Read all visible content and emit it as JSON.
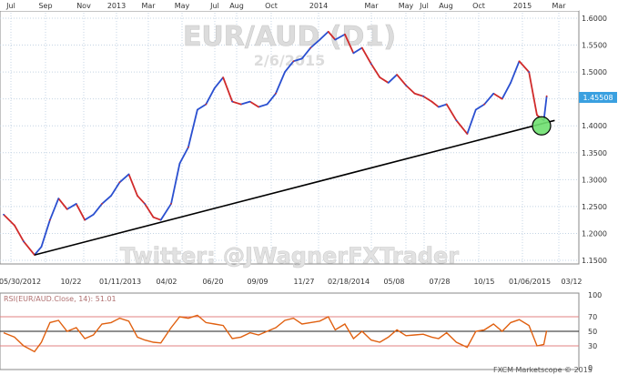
{
  "chart_data": {
    "type": "line",
    "title": "EUR/AUD (D1)",
    "subtitle": "2/6/2015",
    "watermark": "Twitter: @JWagnerFXTrader",
    "footer": "FXCM Marketscope © 2015",
    "last_price": "1.45508",
    "top_axis": [
      "Jul",
      "Sep",
      "Nov",
      "2013",
      "Mar",
      "May",
      "Jul",
      "Aug",
      "Oct",
      "2014",
      "Mar",
      "May",
      "Jul",
      "Aug",
      "Oct",
      "2015",
      "Mar"
    ],
    "bottom_axis": [
      "05/30/2012",
      "10/22",
      "01/11/2013",
      "04/02",
      "06/20",
      "09/09",
      "11/27",
      "02/18/2014",
      "05/08",
      "07/28",
      "10/15",
      "01/06/2015",
      "03/12"
    ],
    "y_ticks": [
      "1.6000",
      "1.5500",
      "1.5000",
      "1.4500",
      "1.4000",
      "1.3500",
      "1.3000",
      "1.2500",
      "1.2000",
      "1.1500"
    ],
    "ylim": [
      1.15,
      1.6
    ],
    "series": [
      {
        "x": [
          "2012-07-01",
          "2012-07-20",
          "2012-08-05",
          "2012-08-24",
          "2012-09-05",
          "2012-09-20",
          "2012-10-05",
          "2012-10-20",
          "2012-11-05",
          "2012-11-20",
          "2012-12-05",
          "2012-12-20",
          "2013-01-05",
          "2013-01-20",
          "2013-02-05",
          "2013-02-20",
          "2013-03-05",
          "2013-03-20",
          "2013-04-02",
          "2013-04-20",
          "2013-05-05",
          "2013-05-20",
          "2013-06-05",
          "2013-06-20",
          "2013-07-05",
          "2013-07-20",
          "2013-08-05",
          "2013-08-20",
          "2013-09-05",
          "2013-09-20",
          "2013-10-05",
          "2013-10-20",
          "2013-11-05",
          "2013-11-20",
          "2013-12-05",
          "2013-12-20",
          "2014-01-05",
          "2014-01-20",
          "2014-02-01",
          "2014-02-18",
          "2014-03-05",
          "2014-03-20",
          "2014-04-05",
          "2014-04-20",
          "2014-05-05",
          "2014-05-20",
          "2014-06-05",
          "2014-06-20",
          "2014-07-05",
          "2014-07-20",
          "2014-08-01",
          "2014-08-15",
          "2014-09-01",
          "2014-09-20",
          "2014-10-05",
          "2014-10-20",
          "2014-11-05",
          "2014-11-20",
          "2014-12-05",
          "2014-12-20",
          "2015-01-06",
          "2015-01-20",
          "2015-02-01",
          "2015-02-06"
        ],
        "values": [
          1.235,
          1.215,
          1.185,
          1.16,
          1.175,
          1.225,
          1.265,
          1.245,
          1.255,
          1.225,
          1.235,
          1.255,
          1.27,
          1.295,
          1.31,
          1.27,
          1.255,
          1.23,
          1.225,
          1.255,
          1.33,
          1.36,
          1.43,
          1.44,
          1.47,
          1.49,
          1.445,
          1.44,
          1.445,
          1.435,
          1.44,
          1.46,
          1.5,
          1.52,
          1.525,
          1.545,
          1.56,
          1.575,
          1.56,
          1.57,
          1.535,
          1.545,
          1.515,
          1.49,
          1.48,
          1.495,
          1.475,
          1.46,
          1.455,
          1.445,
          1.435,
          1.44,
          1.41,
          1.385,
          1.43,
          1.44,
          1.46,
          1.45,
          1.48,
          1.52,
          1.5,
          1.42,
          1.41,
          1.455
        ]
      }
    ],
    "trendline": {
      "from": {
        "x": "2012-08-24",
        "y": 1.16
      },
      "to": {
        "x": "2015-02-20",
        "y": 1.41
      }
    },
    "marked_point": {
      "x": "2015-01-28",
      "y": 1.4
    },
    "rsi": {
      "label": "RSI(EUR/AUD.Close, 14): 51.01",
      "ticks": [
        "100",
        "70",
        "50",
        "30",
        "0"
      ],
      "levels": [
        70,
        50,
        30
      ],
      "values": [
        48,
        42,
        30,
        22,
        35,
        62,
        65,
        50,
        55,
        40,
        45,
        60,
        62,
        68,
        64,
        42,
        38,
        35,
        34,
        55,
        70,
        68,
        72,
        62,
        60,
        58,
        40,
        42,
        48,
        45,
        50,
        55,
        65,
        68,
        60,
        62,
        64,
        70,
        52,
        60,
        40,
        50,
        38,
        35,
        42,
        52,
        44,
        45,
        46,
        42,
        40,
        48,
        35,
        28,
        50,
        52,
        60,
        50,
        62,
        66,
        58,
        30,
        32,
        51
      ]
    }
  }
}
